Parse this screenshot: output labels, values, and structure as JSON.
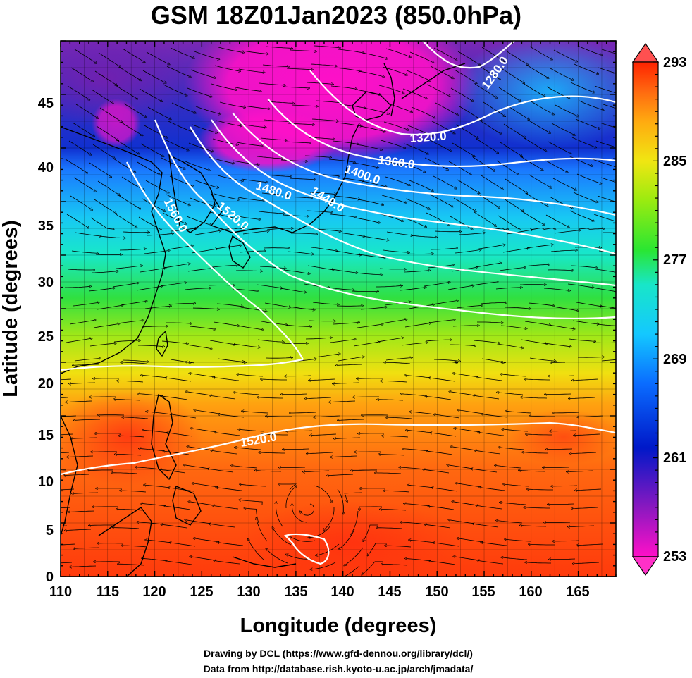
{
  "title": "GSM 18Z01Jan2023 (850.0hPa)",
  "xlabel": "Longitude (degrees)",
  "ylabel": "Latitude  (degrees)",
  "credits": [
    "Drawing by DCL (https://www.gfd-dennou.org/library/dcl/)",
    "Data from http://database.rish.kyoto-u.ac.jp/arch/jmadata/"
  ],
  "map": {
    "lon_range": [
      110,
      169
    ],
    "lat_range": [
      0,
      50
    ],
    "x_ticks": [
      "110",
      "115",
      "120",
      "125",
      "130",
      "135",
      "140",
      "145",
      "150",
      "155",
      "160",
      "165"
    ],
    "y_ticks": [
      "0",
      "5",
      "10",
      "15",
      "20",
      "25",
      "30",
      "35",
      "40",
      "45"
    ],
    "colorbar": {
      "labels": [
        "293",
        "285",
        "277",
        "269",
        "261",
        "253"
      ],
      "range": [
        253,
        293
      ],
      "colors": [
        "#ff10c8",
        "#8a18c0",
        "#0018c8",
        "#0a6cff",
        "#14c8ff",
        "#18e6c8",
        "#2ae632",
        "#9aeb10",
        "#f0e612",
        "#ffaa10",
        "#ff6a10",
        "#ff2200"
      ],
      "over_color": "#ff5050",
      "under_color": "#ff30c8"
    },
    "contours": [
      {
        "label": "1280.0"
      },
      {
        "label": "1320.0"
      },
      {
        "label": "1360.0"
      },
      {
        "label": "1400.0"
      },
      {
        "label": "1440.0"
      },
      {
        "label": "1480.0"
      },
      {
        "label": "1520.0"
      },
      {
        "label": "1560.0"
      },
      {
        "label": "1520.0"
      }
    ]
  }
}
